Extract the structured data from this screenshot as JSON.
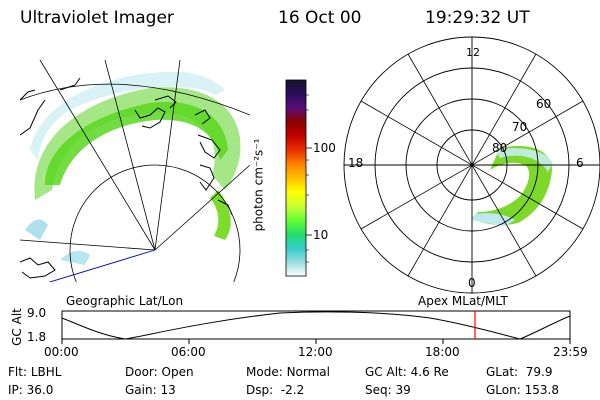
{
  "header": {
    "title": "Ultraviolet Imager",
    "date": "16 Oct 00",
    "time": "19:29:32 UT"
  },
  "colorbar": {
    "label": "photon cm⁻²s⁻¹",
    "ticks": [
      "100",
      "10"
    ],
    "colors": [
      "#151535",
      "#2a0d57",
      "#5a0d7a",
      "#8f0000",
      "#c00000",
      "#e83000",
      "#ff8000",
      "#ffc000",
      "#ffff00",
      "#ccff33",
      "#66ff33",
      "#22dd66",
      "#33cccc",
      "#99dddd",
      "#ffffff"
    ]
  },
  "polar": {
    "mlt_labels": {
      "top": "12",
      "left": "18",
      "right": "6",
      "bottom": "0"
    },
    "lat_labels": [
      "60",
      "70",
      "80"
    ]
  },
  "maps": {
    "left_title": "Geographic Lat/Lon",
    "right_title": "Apex MLat/MLT"
  },
  "timeline": {
    "ylabel": "GC Alt",
    "y_ticks": [
      "9.0",
      "1.8"
    ],
    "x_ticks": [
      "00:00",
      "06:00",
      "12:00",
      "18:00",
      "23:59"
    ],
    "marker_time_fraction": 0.813,
    "marker_color": "#ff0000"
  },
  "footer": [
    {
      "label": "Flt:",
      "value": "LBHL"
    },
    {
      "label": "IP:",
      "value": "36.0"
    },
    {
      "label": "Door:",
      "value": "Open"
    },
    {
      "label": "Gain:",
      "value": "13"
    },
    {
      "label": "Mode:",
      "value": "Normal"
    },
    {
      "label": "Dsp:",
      "value": "-2.2"
    },
    {
      "label": "GC Alt:",
      "value": "4.6 Re"
    },
    {
      "label": "Seq:",
      "value": "39"
    },
    {
      "label": "GLat:",
      "value": "79.9"
    },
    {
      "label": "GLon:",
      "value": "153.8"
    }
  ]
}
